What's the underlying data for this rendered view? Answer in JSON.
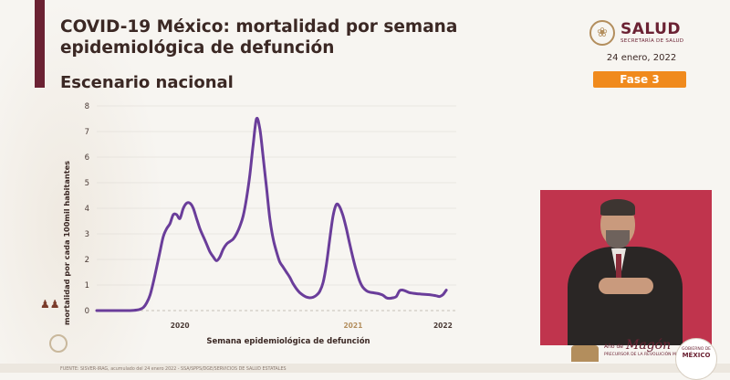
{
  "header": {
    "title_line1": "COVID-19 México: mortalidad por semana",
    "title_line2": "epidemiológica de defunción",
    "subtitle": "Escenario nacional"
  },
  "branding": {
    "agency": "SALUD",
    "agency_sub": "SECRETARÍA DE SALUD",
    "date": "24 enero, 2022",
    "phase": "Fase 3",
    "banner_a": "Año de",
    "banner_b": "Magón",
    "banner_c": "PRECURSOR DE LA REVOLUCIÓN MEXICANA",
    "gov_line1": "GOBIERNO DE",
    "gov_line2": "MÉXICO"
  },
  "footer": {
    "source": "FUENTE: SISVER-IRAG, acumulado del 24 enero 2022 - SSA/SPPS/DGE/SERVICIOS DE SALUD ESTATALES"
  },
  "colors": {
    "accent": "#6b2233",
    "phase": "#f08a1d",
    "series": "#6a3d9a"
  },
  "chart_data": {
    "type": "line",
    "title": "COVID-19 México: mortalidad por semana epidemiológica de defunción",
    "xlabel": "Semana epidemiológica de defunción",
    "ylabel": "mortalidad por cada 100mil habitantes",
    "ylim": [
      0,
      8
    ],
    "yticks": [
      0,
      1,
      2,
      3,
      4,
      5,
      6,
      7,
      8
    ],
    "xrange": [
      0,
      108
    ],
    "xticks": [
      {
        "x": 25,
        "label": "2020"
      },
      {
        "x": 77,
        "label": "2021"
      },
      {
        "x": 104,
        "label": "2022"
      }
    ],
    "grid": true,
    "series": [
      {
        "name": "",
        "x": [
          0,
          8,
          10,
          12,
          13,
          14,
          15,
          16,
          17,
          18,
          19,
          20,
          21,
          22,
          23,
          24,
          25,
          26,
          27,
          28,
          29,
          30,
          31,
          32,
          33,
          34,
          35,
          36,
          37,
          38,
          39,
          40,
          41,
          42,
          43,
          44,
          45,
          46,
          47,
          48,
          49,
          50,
          51,
          52,
          53,
          54,
          55,
          56,
          57,
          58,
          59,
          60,
          61,
          62,
          63,
          64,
          65,
          66,
          67,
          68,
          69,
          70,
          71,
          72,
          73,
          74,
          75,
          76,
          77,
          78,
          79,
          80,
          81,
          82,
          83,
          84,
          85,
          86,
          87,
          88,
          89,
          90,
          91,
          92,
          93,
          94,
          95,
          96,
          97,
          98,
          99,
          100,
          101,
          102,
          103,
          104,
          105
        ],
        "y": [
          0,
          0,
          0,
          0.02,
          0.05,
          0.12,
          0.3,
          0.6,
          1.1,
          1.7,
          2.3,
          2.9,
          3.2,
          3.4,
          3.75,
          3.75,
          3.6,
          4.0,
          4.2,
          4.2,
          4.0,
          3.6,
          3.2,
          2.9,
          2.6,
          2.3,
          2.1,
          1.95,
          2.1,
          2.4,
          2.6,
          2.7,
          2.8,
          3.0,
          3.3,
          3.7,
          4.4,
          5.3,
          6.5,
          7.5,
          7.1,
          6.0,
          4.8,
          3.6,
          2.8,
          2.3,
          1.9,
          1.7,
          1.5,
          1.3,
          1.05,
          0.85,
          0.7,
          0.6,
          0.53,
          0.5,
          0.52,
          0.6,
          0.75,
          1.1,
          1.8,
          2.8,
          3.7,
          4.15,
          4.05,
          3.7,
          3.2,
          2.6,
          2.05,
          1.55,
          1.15,
          0.9,
          0.78,
          0.72,
          0.7,
          0.68,
          0.65,
          0.6,
          0.5,
          0.48,
          0.5,
          0.55,
          0.78,
          0.8,
          0.75,
          0.7,
          0.68,
          0.66,
          0.65,
          0.64,
          0.63,
          0.62,
          0.6,
          0.58,
          0.55,
          0.62,
          0.8
        ]
      }
    ]
  }
}
